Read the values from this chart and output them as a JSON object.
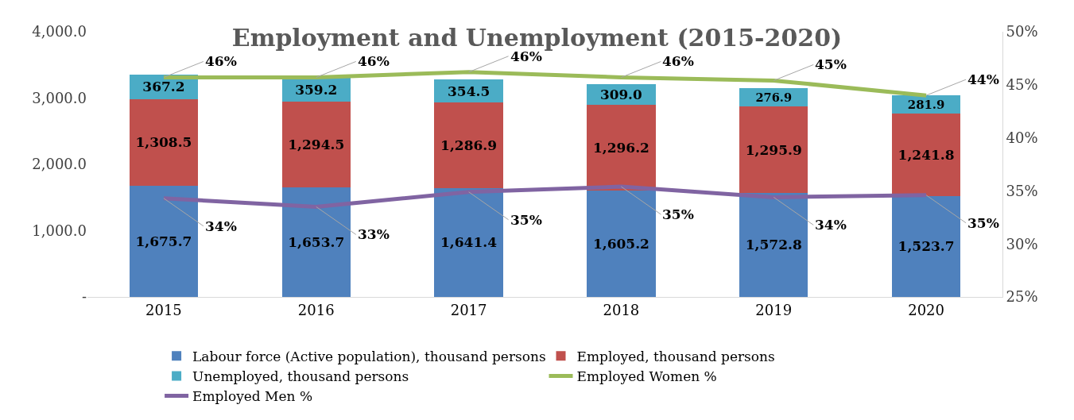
{
  "chart_data": {
    "type": "bar",
    "title": "Employment and Unemployment (2015-2020)",
    "categories": [
      "2015",
      "2016",
      "2017",
      "2018",
      "2019",
      "2020"
    ],
    "stacked": true,
    "series": [
      {
        "name": "Labour force (Active population), thousand persons",
        "color": "#4f81bd",
        "values": [
          1675.7,
          1653.7,
          1641.4,
          1605.2,
          1572.8,
          1523.7
        ],
        "value_labels": [
          "1,675.7",
          "1,653.7",
          "1,641.4",
          "1,605.2",
          "1,572.8",
          "1,523.7"
        ]
      },
      {
        "name": "Employed, thousand persons",
        "color": "#c0504d",
        "values": [
          1308.5,
          1294.5,
          1286.9,
          1296.2,
          1295.9,
          1241.8
        ],
        "value_labels": [
          "1,308.5",
          "1,294.5",
          "1,286.9",
          "1,296.2",
          "1,295.9",
          "1,241.8"
        ]
      },
      {
        "name": "Unemployed, thousand persons",
        "color": "#4bacc6",
        "values": [
          367.2,
          359.2,
          354.5,
          309.0,
          276.9,
          281.9
        ],
        "value_labels": [
          "367.2",
          "359.2",
          "354.5",
          "309.0",
          "276.9",
          "281.9"
        ]
      },
      {
        "name": "Employed Women %",
        "type": "line",
        "axis": "y2",
        "color": "#9bbb59",
        "values": [
          45.7,
          45.7,
          46.2,
          45.7,
          45.4,
          44.0
        ],
        "value_labels": [
          "46%",
          "46%",
          "46%",
          "46%",
          "45%",
          "44%"
        ]
      },
      {
        "name": "Employed Men %",
        "type": "line",
        "axis": "y2",
        "color": "#8064a2",
        "values": [
          34.3,
          33.5,
          34.9,
          35.4,
          34.4,
          34.6
        ],
        "value_labels": [
          "34%",
          "33%",
          "35%",
          "35%",
          "34%",
          "35%"
        ]
      }
    ],
    "ylim": [
      0,
      4000
    ],
    "yticks": [
      {
        "value": 0,
        "label": "-"
      },
      {
        "value": 1000,
        "label": "1,000.0"
      },
      {
        "value": 2000,
        "label": "2,000.0"
      },
      {
        "value": 3000,
        "label": "3,000.0"
      },
      {
        "value": 4000,
        "label": "4,000.0"
      }
    ],
    "y2lim": [
      25,
      50
    ],
    "y2ticks": [
      {
        "value": 25,
        "label": "25%"
      },
      {
        "value": 30,
        "label": "30%"
      },
      {
        "value": 35,
        "label": "35%"
      },
      {
        "value": 40,
        "label": "40%"
      },
      {
        "value": 45,
        "label": "45%"
      },
      {
        "value": 50,
        "label": "50%"
      }
    ],
    "legend": "bottom",
    "marker": "none",
    "line_style": "solid"
  }
}
